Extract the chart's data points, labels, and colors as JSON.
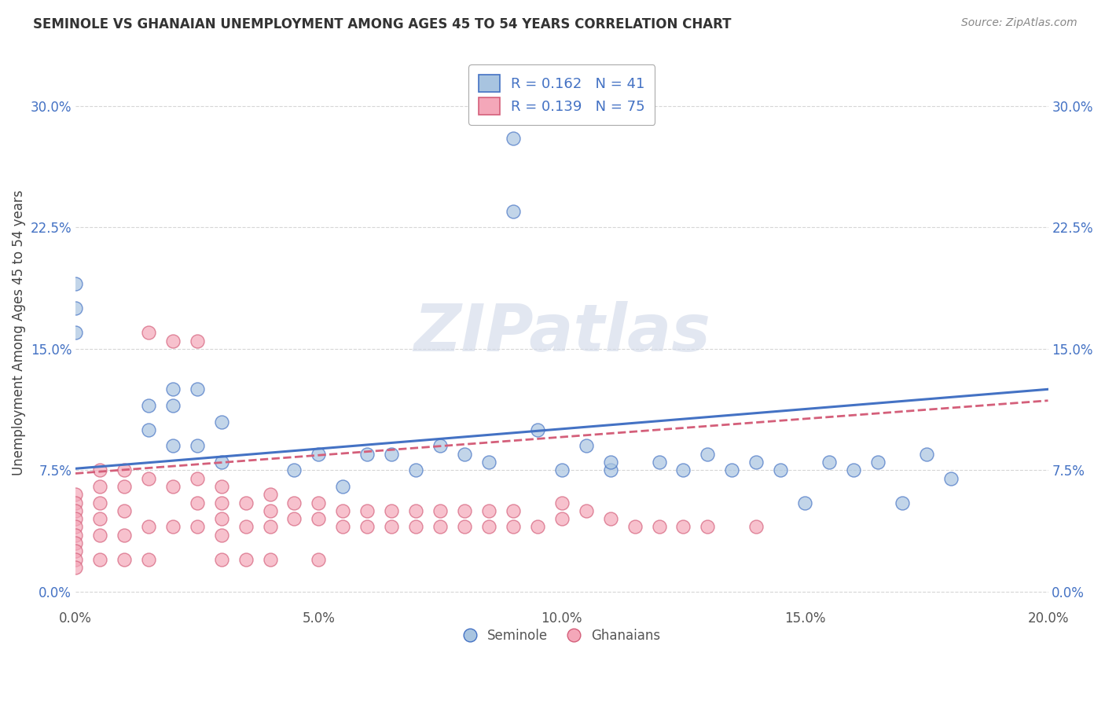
{
  "title": "SEMINOLE VS GHANAIAN UNEMPLOYMENT AMONG AGES 45 TO 54 YEARS CORRELATION CHART",
  "source": "Source: ZipAtlas.com",
  "ylabel": "Unemployment Among Ages 45 to 54 years",
  "xlim": [
    0.0,
    0.2
  ],
  "ylim": [
    -0.01,
    0.33
  ],
  "xticks": [
    0.0,
    0.05,
    0.1,
    0.15,
    0.2
  ],
  "xticklabels": [
    "0.0%",
    "5.0%",
    "10.0%",
    "15.0%",
    "20.0%"
  ],
  "yticks": [
    0.0,
    0.075,
    0.15,
    0.225,
    0.3
  ],
  "yticklabels": [
    "0.0%",
    "7.5%",
    "15.0%",
    "22.5%",
    "30.0%"
  ],
  "seminole_R": 0.162,
  "seminole_N": 41,
  "ghanaian_R": 0.139,
  "ghanaian_N": 75,
  "seminole_color": "#a8c4e0",
  "ghanaian_color": "#f4a7b9",
  "seminole_line_color": "#4472c4",
  "ghanaian_line_color": "#d45f7a",
  "seminole_x": [
    0.0,
    0.0,
    0.0,
    0.015,
    0.015,
    0.02,
    0.02,
    0.02,
    0.025,
    0.025,
    0.03,
    0.03,
    0.045,
    0.05,
    0.055,
    0.06,
    0.065,
    0.07,
    0.075,
    0.08,
    0.085,
    0.09,
    0.09,
    0.095,
    0.1,
    0.105,
    0.11,
    0.11,
    0.12,
    0.125,
    0.13,
    0.135,
    0.14,
    0.145,
    0.15,
    0.155,
    0.16,
    0.165,
    0.17,
    0.175,
    0.18
  ],
  "seminole_y": [
    0.19,
    0.175,
    0.16,
    0.115,
    0.1,
    0.125,
    0.115,
    0.09,
    0.125,
    0.09,
    0.105,
    0.08,
    0.075,
    0.085,
    0.065,
    0.085,
    0.085,
    0.075,
    0.09,
    0.085,
    0.08,
    0.28,
    0.235,
    0.1,
    0.075,
    0.09,
    0.075,
    0.08,
    0.08,
    0.075,
    0.085,
    0.075,
    0.08,
    0.075,
    0.055,
    0.08,
    0.075,
    0.08,
    0.055,
    0.085,
    0.07
  ],
  "ghanaian_x": [
    0.0,
    0.0,
    0.0,
    0.0,
    0.0,
    0.0,
    0.0,
    0.0,
    0.0,
    0.0,
    0.005,
    0.005,
    0.005,
    0.005,
    0.005,
    0.005,
    0.01,
    0.01,
    0.01,
    0.01,
    0.01,
    0.015,
    0.015,
    0.015,
    0.015,
    0.02,
    0.02,
    0.02,
    0.025,
    0.025,
    0.025,
    0.025,
    0.03,
    0.03,
    0.03,
    0.03,
    0.03,
    0.035,
    0.035,
    0.035,
    0.04,
    0.04,
    0.04,
    0.04,
    0.045,
    0.045,
    0.05,
    0.05,
    0.05,
    0.055,
    0.055,
    0.06,
    0.06,
    0.065,
    0.065,
    0.07,
    0.07,
    0.075,
    0.075,
    0.08,
    0.08,
    0.085,
    0.085,
    0.09,
    0.09,
    0.095,
    0.1,
    0.1,
    0.105,
    0.11,
    0.115,
    0.12,
    0.125,
    0.13,
    0.14
  ],
  "ghanaian_y": [
    0.06,
    0.055,
    0.05,
    0.045,
    0.04,
    0.035,
    0.03,
    0.025,
    0.02,
    0.015,
    0.075,
    0.065,
    0.055,
    0.045,
    0.035,
    0.02,
    0.075,
    0.065,
    0.05,
    0.035,
    0.02,
    0.16,
    0.07,
    0.04,
    0.02,
    0.155,
    0.065,
    0.04,
    0.155,
    0.07,
    0.055,
    0.04,
    0.065,
    0.055,
    0.045,
    0.035,
    0.02,
    0.055,
    0.04,
    0.02,
    0.06,
    0.05,
    0.04,
    0.02,
    0.055,
    0.045,
    0.055,
    0.045,
    0.02,
    0.05,
    0.04,
    0.05,
    0.04,
    0.05,
    0.04,
    0.05,
    0.04,
    0.05,
    0.04,
    0.05,
    0.04,
    0.05,
    0.04,
    0.05,
    0.04,
    0.04,
    0.055,
    0.045,
    0.05,
    0.045,
    0.04,
    0.04,
    0.04,
    0.04,
    0.04
  ],
  "seminole_trendline_x": [
    0.0,
    0.2
  ],
  "seminole_trendline_y": [
    0.076,
    0.125
  ],
  "ghanaian_trendline_x": [
    0.0,
    0.2
  ],
  "ghanaian_trendline_y": [
    0.073,
    0.118
  ]
}
